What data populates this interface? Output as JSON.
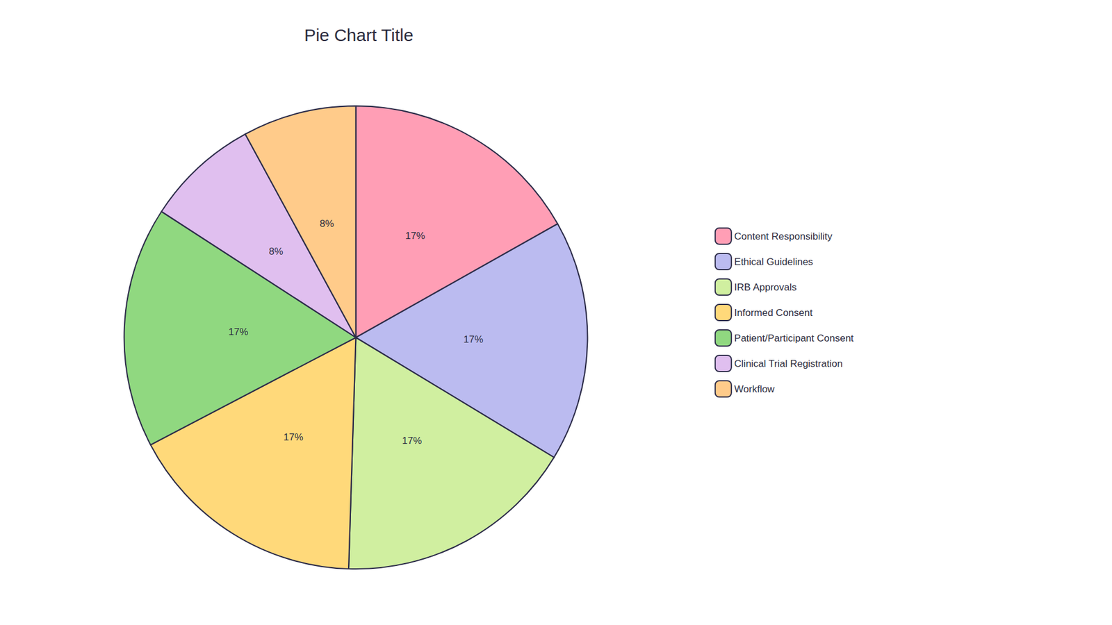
{
  "chart_data": {
    "type": "pie",
    "title": "Pie Chart Title",
    "categories": [
      "Content Responsibility",
      "Ethical Guidelines",
      "IRB Approvals",
      "Informed Consent",
      "Patient/Participant Consent",
      "Clinical Trial Registration",
      "Workflow"
    ],
    "values": [
      17,
      17,
      17,
      17,
      17,
      8,
      8
    ],
    "value_labels": [
      "17%",
      "17%",
      "17%",
      "17%",
      "17%",
      "8%",
      "8%"
    ],
    "colors": [
      "#FF9EB5",
      "#BBBBF0",
      "#D0EFA0",
      "#FFD97A",
      "#90D880",
      "#E0BFEF",
      "#FFCB8A"
    ],
    "data_labels": true,
    "legend": "right"
  }
}
